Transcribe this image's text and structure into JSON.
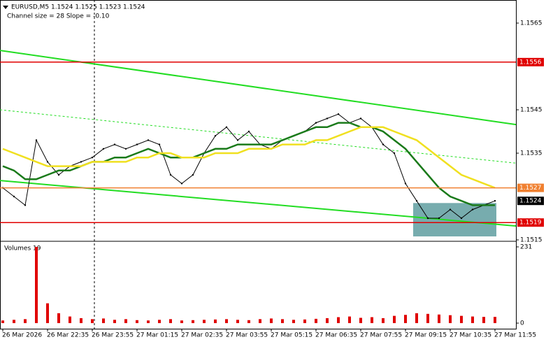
{
  "chart_data": {
    "type": "line",
    "title": "EURUSD,M5  1.1524 1.1525 1.1523 1.1524",
    "subtitle": "Channel size = 28 Slope = -0.10",
    "volume_title": "Volumes 19",
    "time_labels": [
      "26 Mar 2026",
      "26 Mar 22:35",
      "26 Mar 23:55",
      "27 Mar 01:15",
      "27 Mar 02:35",
      "27 Mar 03:55",
      "27 Mar 05:15",
      "27 Mar 06:35",
      "27 Mar 07:55",
      "27 Mar 09:15",
      "27 Mar 10:35",
      "27 Mar 11:55"
    ],
    "ylim": [
      1.1515,
      1.157
    ],
    "yticks": [
      1.1565,
      1.1545,
      1.1535,
      1.1515
    ],
    "series": [
      {
        "color": "#000000",
        "values": [
          1.1527,
          1.1525,
          1.1523,
          1.1538,
          1.1533,
          1.153,
          1.1532,
          1.1533,
          1.1534,
          1.1536,
          1.1537,
          1.1536,
          1.1537,
          1.1538,
          1.1537,
          1.153,
          1.1528,
          1.153,
          1.1535,
          1.1539,
          1.1541,
          1.1538,
          1.154,
          1.1537,
          1.1536,
          1.1538,
          1.1539,
          1.154,
          1.1542,
          1.1543,
          1.1544,
          1.1542,
          1.1543,
          1.1541,
          1.1537,
          1.1535,
          1.1528,
          1.1524,
          1.152,
          1.152,
          1.1522,
          1.152,
          1.1522,
          1.1523,
          1.1524
        ]
      },
      {
        "color": "#1a7a1a",
        "values": [
          1.1532,
          1.1531,
          1.1529,
          1.1529,
          1.153,
          1.1531,
          1.1531,
          1.1532,
          1.1533,
          1.1533,
          1.1534,
          1.1534,
          1.1535,
          1.1536,
          1.1535,
          1.1534,
          1.1534,
          1.1534,
          1.1535,
          1.1536,
          1.1536,
          1.1537,
          1.1537,
          1.1537,
          1.1537,
          1.1538,
          1.1539,
          1.154,
          1.1541,
          1.1541,
          1.1542,
          1.1542,
          1.1541,
          1.1541,
          1.154,
          1.1538,
          1.1536,
          1.1533,
          1.153,
          1.1527,
          1.1525,
          1.1524,
          1.1523,
          1.1523,
          1.1523
        ]
      },
      {
        "color": "#f0e020",
        "values": [
          1.1536,
          1.1535,
          1.1534,
          1.1533,
          1.1532,
          1.1532,
          1.1532,
          1.1532,
          1.1533,
          1.1533,
          1.1533,
          1.1533,
          1.1534,
          1.1534,
          1.1535,
          1.1535,
          1.1534,
          1.1534,
          1.1534,
          1.1535,
          1.1535,
          1.1535,
          1.1536,
          1.1536,
          1.1536,
          1.1537,
          1.1537,
          1.1537,
          1.1538,
          1.1538,
          1.1539,
          1.154,
          1.1541,
          1.1541,
          1.1541,
          1.154,
          1.1539,
          1.1538,
          1.1536,
          1.1534,
          1.1532,
          1.153,
          1.1529,
          1.1528,
          1.1527
        ]
      }
    ],
    "channel": [
      {
        "start": 1.15587,
        "end": 1.15416,
        "color": "#22dd22",
        "dashed": false
      },
      {
        "start": 1.1545,
        "end": 1.15327,
        "color": "#22dd22",
        "dashed": true
      },
      {
        "start": 1.15287,
        "end": 1.15182,
        "color": "#22dd22",
        "dashed": false
      }
    ],
    "zone": {
      "top": 1.15235,
      "bottom": 1.15158,
      "color": "#5f9ea0"
    },
    "levels": [
      {
        "value": 1.1556,
        "color": "#e00000",
        "line": true
      },
      {
        "value": 1.1527,
        "color": "#f08030",
        "line": true
      },
      {
        "value": 1.1524,
        "color": "#000000",
        "line": false
      },
      {
        "value": 1.1519,
        "color": "#e00000",
        "line": true
      }
    ],
    "volumes": [
      8,
      10,
      12,
      231,
      60,
      30,
      20,
      15,
      12,
      14,
      10,
      12,
      9,
      8,
      10,
      12,
      8,
      9,
      10,
      11,
      12,
      10,
      9,
      12,
      14,
      12,
      10,
      11,
      13,
      15,
      18,
      20,
      16,
      18,
      15,
      22,
      25,
      30,
      28,
      26,
      24,
      22,
      20,
      19,
      19
    ],
    "volume_color": "#e00000",
    "volume_ylim": [
      0,
      231
    ],
    "volume_yticks": [
      231,
      0
    ]
  }
}
